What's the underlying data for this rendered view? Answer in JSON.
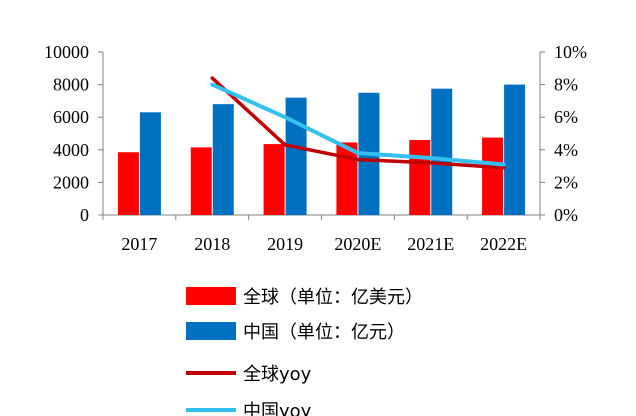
{
  "chart_data": {
    "type": "bar",
    "categories": [
      "2017",
      "2018",
      "2019",
      "2020E",
      "2021E",
      "2022E"
    ],
    "series": [
      {
        "name": "全球（单位：亿美元）",
        "kind": "bar",
        "axis": "left",
        "color": "#ff0000",
        "values": [
          3850,
          4150,
          4350,
          4450,
          4600,
          4750
        ]
      },
      {
        "name": "中国（单位：亿元）",
        "kind": "bar",
        "axis": "left",
        "color": "#0070c0",
        "values": [
          6300,
          6800,
          7200,
          7500,
          7750,
          8000
        ]
      },
      {
        "name": "全球yoy",
        "kind": "line",
        "axis": "right",
        "color": "#c00000",
        "values": [
          null,
          8.4,
          4.3,
          3.4,
          3.2,
          2.9
        ]
      },
      {
        "name": "中国yoy",
        "kind": "line",
        "axis": "right",
        "color": "#33c0f0",
        "values": [
          null,
          8.0,
          6.0,
          3.8,
          3.5,
          3.1
        ]
      }
    ],
    "y_left": {
      "min": 0,
      "max": 10000,
      "ticks": [
        0,
        2000,
        4000,
        6000,
        8000,
        10000
      ]
    },
    "y_right": {
      "min": 0,
      "max": 10,
      "ticks": [
        "0%",
        "2%",
        "4%",
        "6%",
        "8%",
        "10%"
      ]
    },
    "title": "",
    "xlabel": "",
    "ylabel": "",
    "grid": false,
    "legend_position": "bottom"
  }
}
